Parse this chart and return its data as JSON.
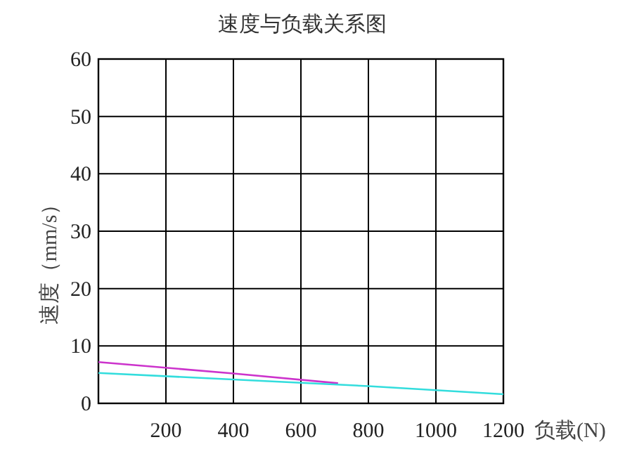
{
  "chart_data": {
    "type": "line",
    "title": "速度与负载关系图",
    "xlabel": "负载(N)",
    "ylabel": "速度（mm/s）",
    "xlim": [
      0,
      1200
    ],
    "xticks": [
      {
        "value": 0,
        "label": null
      },
      200,
      400,
      600,
      800,
      1000,
      1200
    ],
    "ylim": [
      0,
      60
    ],
    "yticks": [
      0,
      10,
      20,
      30,
      40,
      50,
      60
    ],
    "grid": true,
    "line_style": "solid",
    "series": [
      {
        "color": "#cc33cc",
        "x": [
          0,
          400,
          710
        ],
        "values": [
          7.2,
          5.2,
          3.5
        ]
      },
      {
        "color": "#33dddd",
        "x": [
          0,
          800,
          1200
        ],
        "values": [
          5.3,
          3.0,
          1.6
        ]
      }
    ]
  }
}
